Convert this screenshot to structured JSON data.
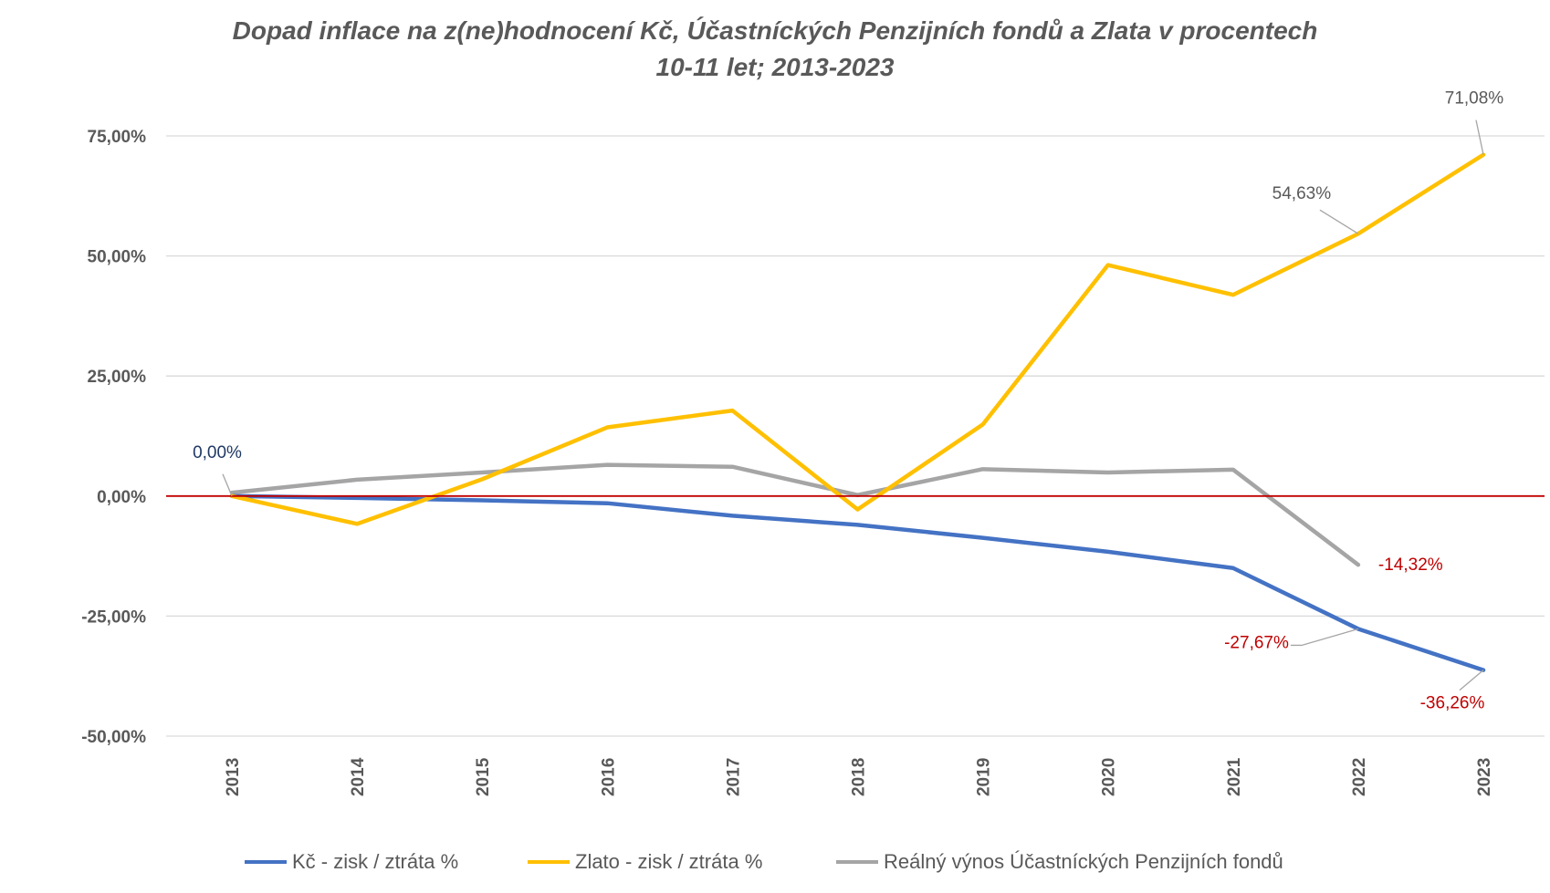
{
  "chart_data": {
    "type": "line",
    "title": "Dopad inflace na z(ne)hodnocení Kč, Účastníckých Penzijních fondů a Zlata v procentech",
    "subtitle": "10-11 let; 2013-2023",
    "categories": [
      "2013",
      "2014",
      "2015",
      "2016",
      "2017",
      "2018",
      "2019",
      "2020",
      "2021",
      "2022",
      "2023"
    ],
    "ylim": [
      -50,
      75
    ],
    "yticks": [
      75,
      50,
      25,
      0,
      -25,
      -50
    ],
    "ytick_labels": [
      "75,00%",
      "50,00%",
      "25,00%",
      "0,00%",
      "-25,00%",
      "-50,00%"
    ],
    "grid": true,
    "legend_position": "bottom",
    "series": [
      {
        "name": "Kč - zisk / ztráta %",
        "color": "#4472C4",
        "values": [
          0,
          -0.4,
          -0.9,
          -1.5,
          -4.1,
          -6.0,
          -8.7,
          -11.6,
          -15.0,
          -27.67,
          -36.26
        ]
      },
      {
        "name": "Zlato - zisk / ztráta %",
        "color": "#FFC000",
        "values": [
          0,
          -5.8,
          3.5,
          14.3,
          17.8,
          -2.8,
          14.9,
          48.1,
          41.9,
          54.63,
          71.08
        ]
      },
      {
        "name": "Reálný výnos Účastníckých Penzijních fondů",
        "color": "#A5A5A5",
        "values": [
          0.7,
          3.4,
          4.9,
          6.5,
          6.1,
          0.2,
          5.6,
          4.9,
          5.5,
          -14.32,
          null
        ]
      }
    ],
    "reference_line": {
      "value": 0,
      "color": "#C00000"
    },
    "annotations": [
      {
        "text": "0,00%",
        "series": 0,
        "index": 0,
        "color": "#1F3864"
      },
      {
        "text": "71,08%",
        "series": 1,
        "index": 10,
        "color": "#595959"
      },
      {
        "text": "54,63%",
        "series": 1,
        "index": 9,
        "color": "#595959"
      },
      {
        "text": "-14,32%",
        "series": 2,
        "index": 9,
        "color": "#C00000"
      },
      {
        "text": "-27,67%",
        "series": 0,
        "index": 9,
        "color": "#C00000"
      },
      {
        "text": "-36,26%",
        "series": 0,
        "index": 10,
        "color": "#C00000"
      }
    ]
  }
}
